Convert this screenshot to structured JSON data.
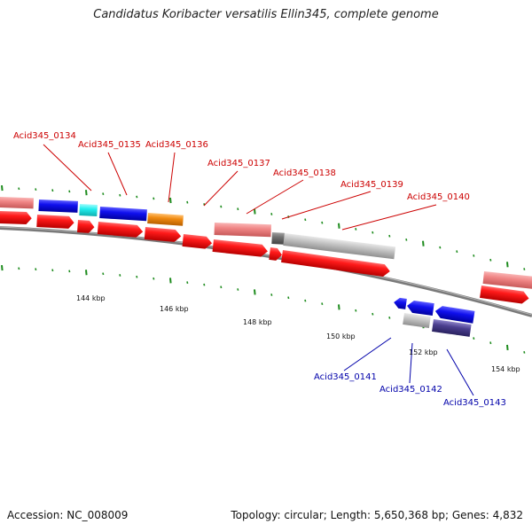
{
  "title": "Candidatus Koribacter versatilis Ellin345, complete genome",
  "footer": {
    "accession": "Accession: NC_008009",
    "summary": "Topology: circular; Length: 5,650,368 bp; Genes: 4,832"
  },
  "axis_labels": [
    "144 kbp",
    "146 kbp",
    "148 kbp",
    "150 kbp",
    "152 kbp",
    "154 kbp"
  ],
  "genes_upper": [
    "Acid345_0134",
    "Acid345_0135",
    "Acid345_0136",
    "Acid345_0137",
    "Acid345_0138",
    "Acid345_0139",
    "Acid345_0140"
  ],
  "genes_lower": [
    "Acid345_0141",
    "Acid345_0142",
    "Acid345_0143"
  ],
  "colors": {
    "red_label": "#cc0000",
    "blue_label": "#0000aa",
    "cds": "#ee1111",
    "pink": "#f08080",
    "blue": "#0a0ae0",
    "cyan": "#22eeee",
    "orange": "#f08a10",
    "grey": "#c0c0c0",
    "dark_grey": "#707070",
    "purple": "#4b3f8f",
    "tick": "#1e8c1e"
  }
}
